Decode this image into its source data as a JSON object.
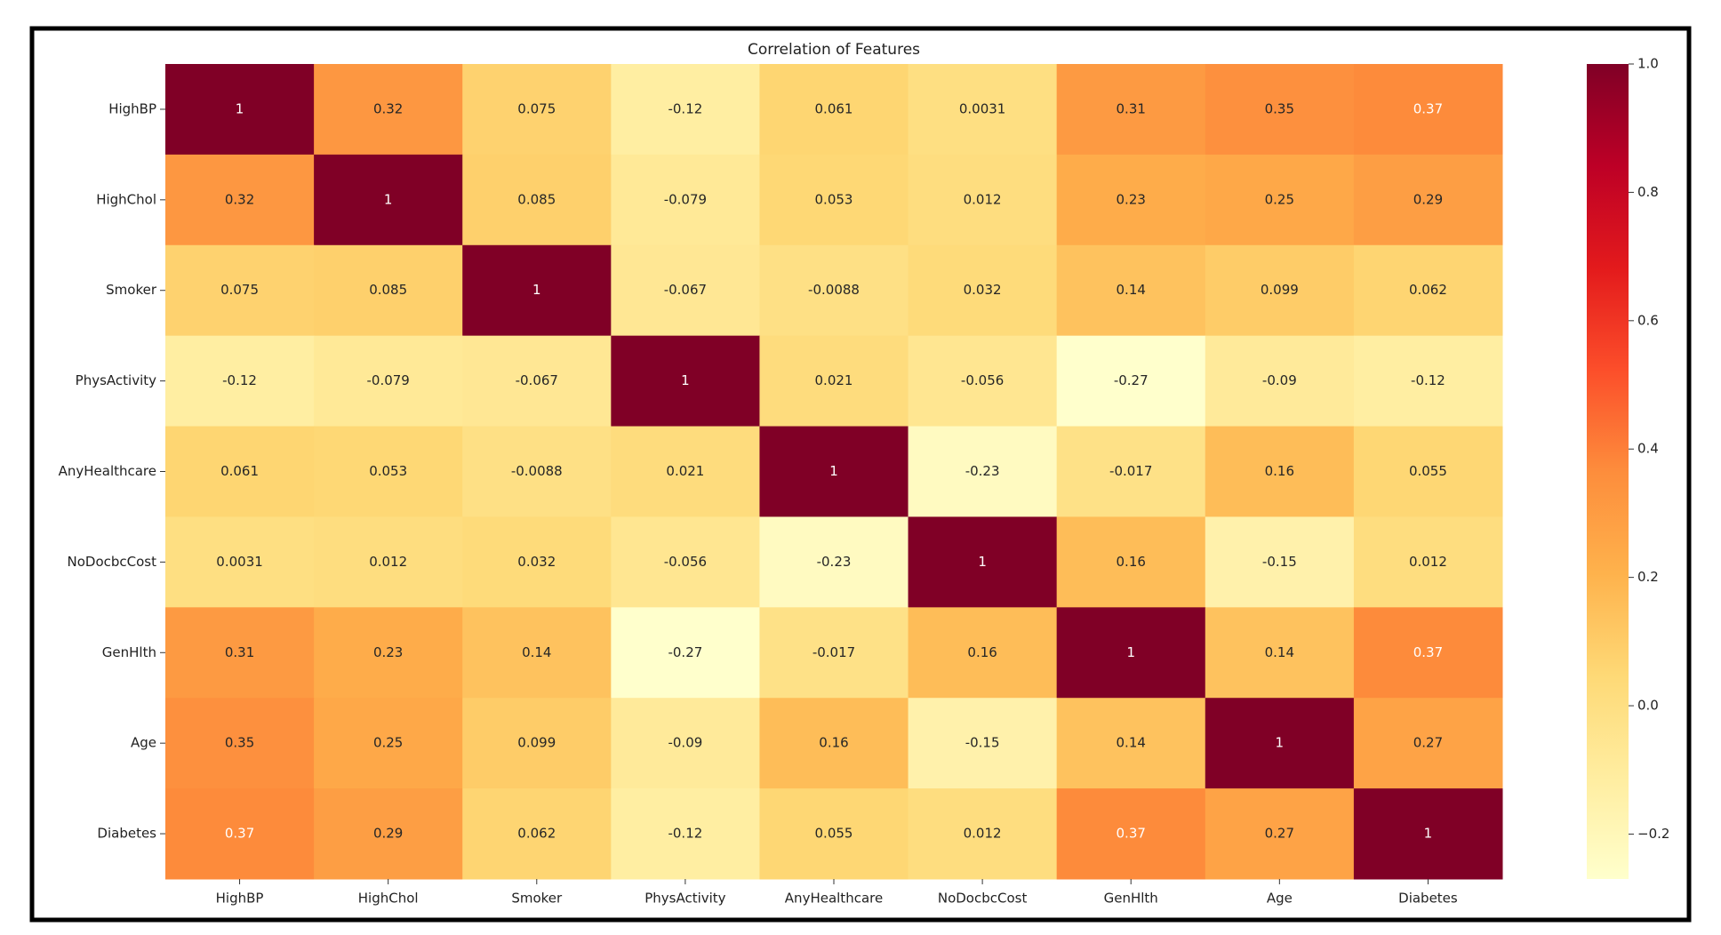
{
  "chart_data": {
    "type": "heatmap",
    "title": "Correlation of Features",
    "categories": [
      "HighBP",
      "HighChol",
      "Smoker",
      "PhysActivity",
      "AnyHealthcare",
      "NoDocbcCost",
      "GenHlth",
      "Age",
      "Diabetes"
    ],
    "values": [
      [
        1,
        0.32,
        0.075,
        -0.12,
        0.061,
        0.0031,
        0.31,
        0.35,
        0.37
      ],
      [
        0.32,
        1,
        0.085,
        -0.079,
        0.053,
        0.012,
        0.23,
        0.25,
        0.29
      ],
      [
        0.075,
        0.085,
        1,
        -0.067,
        -0.0088,
        0.032,
        0.14,
        0.099,
        0.062
      ],
      [
        -0.12,
        -0.079,
        -0.067,
        1,
        0.021,
        -0.056,
        -0.27,
        -0.09,
        -0.12
      ],
      [
        0.061,
        0.053,
        -0.0088,
        0.021,
        1,
        -0.23,
        -0.017,
        0.16,
        0.055
      ],
      [
        0.0031,
        0.012,
        0.032,
        -0.056,
        -0.23,
        1,
        0.16,
        -0.15,
        0.012
      ],
      [
        0.31,
        0.23,
        0.14,
        -0.27,
        -0.017,
        0.16,
        1,
        0.14,
        0.37
      ],
      [
        0.35,
        0.25,
        0.099,
        -0.09,
        0.16,
        -0.15,
        0.14,
        1,
        0.27
      ],
      [
        0.37,
        0.29,
        0.062,
        -0.12,
        0.055,
        0.012,
        0.37,
        0.27,
        1
      ]
    ],
    "colormap": [
      "#ffffcc",
      "#ffeda0",
      "#fed976",
      "#feb24c",
      "#fd8d3c",
      "#fc4e2a",
      "#e31a1c",
      "#bd0026",
      "#800026"
    ],
    "ylim": [
      -0.27,
      1
    ],
    "yticks": [
      {
        "value": -0.2,
        "label": "−0.2"
      },
      {
        "value": 0,
        "label": "0.0"
      },
      0.2,
      0.4,
      0.6,
      0.8,
      {
        "value": 1,
        "label": "1.0"
      }
    ]
  }
}
